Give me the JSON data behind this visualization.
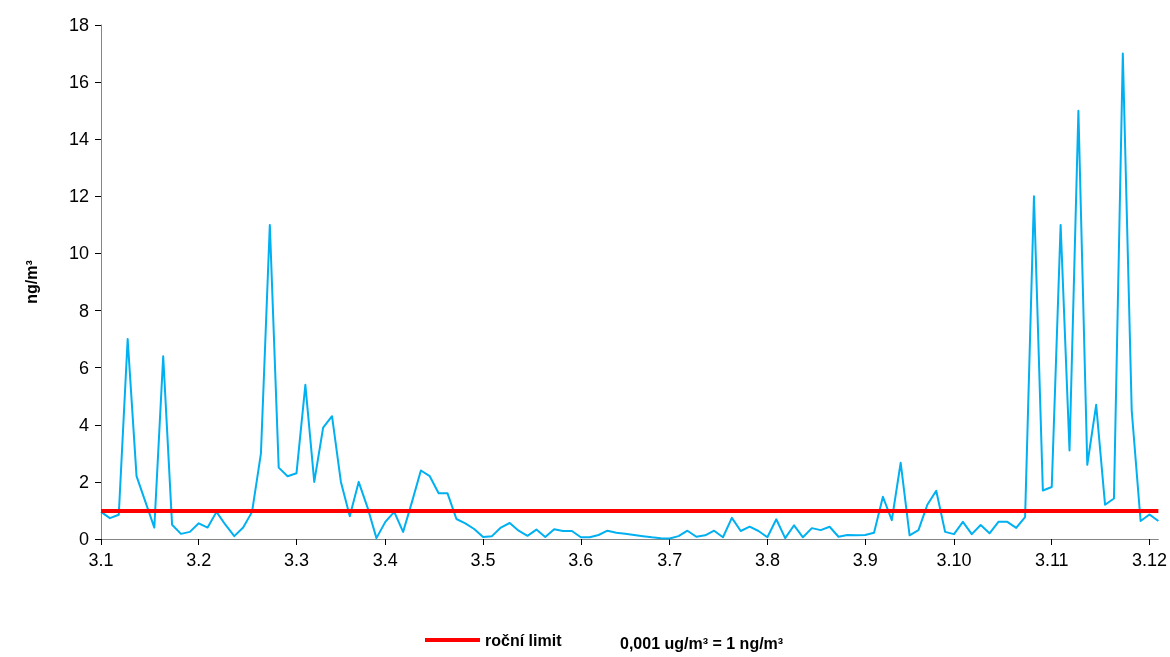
{
  "chart_data": {
    "type": "line",
    "ylabel": "ng/m³",
    "marker": "none",
    "legend": "bottom",
    "ylim": [
      0,
      18
    ],
    "yticks": [
      0,
      2,
      4,
      6,
      8,
      10,
      12,
      14,
      16,
      18
    ],
    "categories": [
      "3.1",
      null,
      null,
      null,
      null,
      null,
      null,
      null,
      null,
      null,
      null,
      "3.2",
      null,
      null,
      null,
      null,
      null,
      null,
      null,
      null,
      null,
      null,
      "3.3",
      null,
      null,
      null,
      null,
      null,
      null,
      null,
      null,
      null,
      "3.4",
      null,
      null,
      null,
      null,
      null,
      null,
      null,
      null,
      null,
      null,
      "3.5",
      null,
      null,
      null,
      null,
      null,
      null,
      null,
      null,
      null,
      null,
      "3.6",
      null,
      null,
      null,
      null,
      null,
      null,
      null,
      null,
      null,
      "3.7",
      null,
      null,
      null,
      null,
      null,
      null,
      null,
      null,
      null,
      null,
      "3.8",
      null,
      null,
      null,
      null,
      null,
      null,
      null,
      null,
      null,
      null,
      "3.9",
      null,
      null,
      null,
      null,
      null,
      null,
      null,
      null,
      null,
      "3.10",
      null,
      null,
      null,
      null,
      null,
      null,
      null,
      null,
      null,
      null,
      "3.11",
      null,
      null,
      null,
      null,
      null,
      null,
      null,
      null,
      null,
      null,
      "3.12",
      null
    ],
    "series": [
      {
        "color": "#00b0f0",
        "values": [
          0.95,
          0.73,
          0.85,
          7.0,
          2.2,
          1.3,
          0.4,
          6.4,
          0.5,
          0.18,
          0.25,
          0.55,
          0.4,
          0.95,
          0.5,
          0.1,
          0.4,
          0.95,
          3.0,
          11.0,
          2.5,
          2.2,
          2.3,
          5.4,
          2.0,
          3.9,
          4.3,
          2.0,
          0.8,
          2.0,
          1.1,
          0.03,
          0.6,
          0.95,
          0.25,
          1.3,
          2.4,
          2.2,
          1.6,
          1.6,
          0.7,
          0.55,
          0.35,
          0.07,
          0.1,
          0.4,
          0.56,
          0.29,
          0.11,
          0.33,
          0.07,
          0.34,
          0.28,
          0.28,
          0.06,
          0.06,
          0.14,
          0.29,
          0.22,
          0.18,
          0.14,
          0.1,
          0.06,
          0.03,
          0.02,
          0.1,
          0.29,
          0.08,
          0.13,
          0.29,
          0.06,
          0.74,
          0.28,
          0.43,
          0.28,
          0.06,
          0.69,
          0.03,
          0.48,
          0.06,
          0.38,
          0.31,
          0.43,
          0.08,
          0.14,
          0.13,
          0.14,
          0.22,
          1.48,
          0.66,
          2.67,
          0.13,
          0.31,
          1.2,
          1.69,
          0.25,
          0.17,
          0.6,
          0.17,
          0.49,
          0.2,
          0.6,
          0.6,
          0.39,
          0.77,
          12.0,
          1.7,
          1.82,
          11.0,
          3.1,
          15.0,
          2.6,
          4.7,
          1.2,
          1.42,
          17.0,
          4.5,
          0.63,
          0.86,
          0.63
        ]
      }
    ],
    "ref_lines": [
      {
        "axis": "y",
        "value": 1,
        "label": "roční limit",
        "color": "#ff0000"
      }
    ],
    "annotations": [
      "0,001 ug/m³ = 1 ng/m³"
    ]
  }
}
